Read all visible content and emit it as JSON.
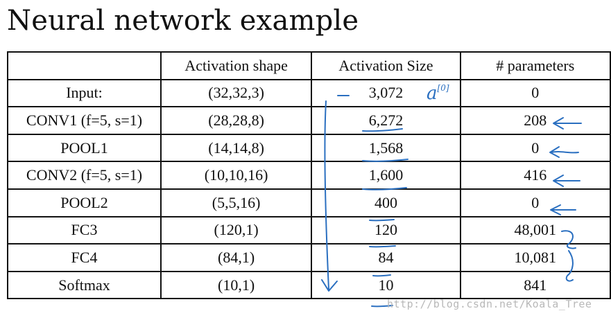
{
  "title": "Neural network example",
  "table": {
    "headers": [
      "",
      "Activation shape",
      "Activation Size",
      "# parameters"
    ],
    "rows": [
      {
        "layer": "Input:",
        "shape": "(32,32,3)",
        "size": "3,072",
        "params": "0"
      },
      {
        "layer": "CONV1 (f=5, s=1)",
        "shape": "(28,28,8)",
        "size": "6,272",
        "params": "208"
      },
      {
        "layer": "POOL1",
        "shape": "(14,14,8)",
        "size": "1,568",
        "params": "0"
      },
      {
        "layer": "CONV2  (f=5, s=1)",
        "shape": "(10,10,16)",
        "size": "1,600",
        "params": "416"
      },
      {
        "layer": "POOL2",
        "shape": "(5,5,16)",
        "size": "400",
        "params": "0"
      },
      {
        "layer": "FC3",
        "shape": "(120,1)",
        "size": "120",
        "params": "48,001"
      },
      {
        "layer": "FC4",
        "shape": "(84,1)",
        "size": "84",
        "params": "10,081"
      },
      {
        "layer": "Softmax",
        "shape": "(10,1)",
        "size": "10",
        "params": "841"
      }
    ]
  },
  "annotations": {
    "input_symbol": "a",
    "input_superscript": "[0]",
    "ink_color": "#2a6fc0"
  },
  "watermark": "http://blog.csdn.net/Koala_Tree"
}
